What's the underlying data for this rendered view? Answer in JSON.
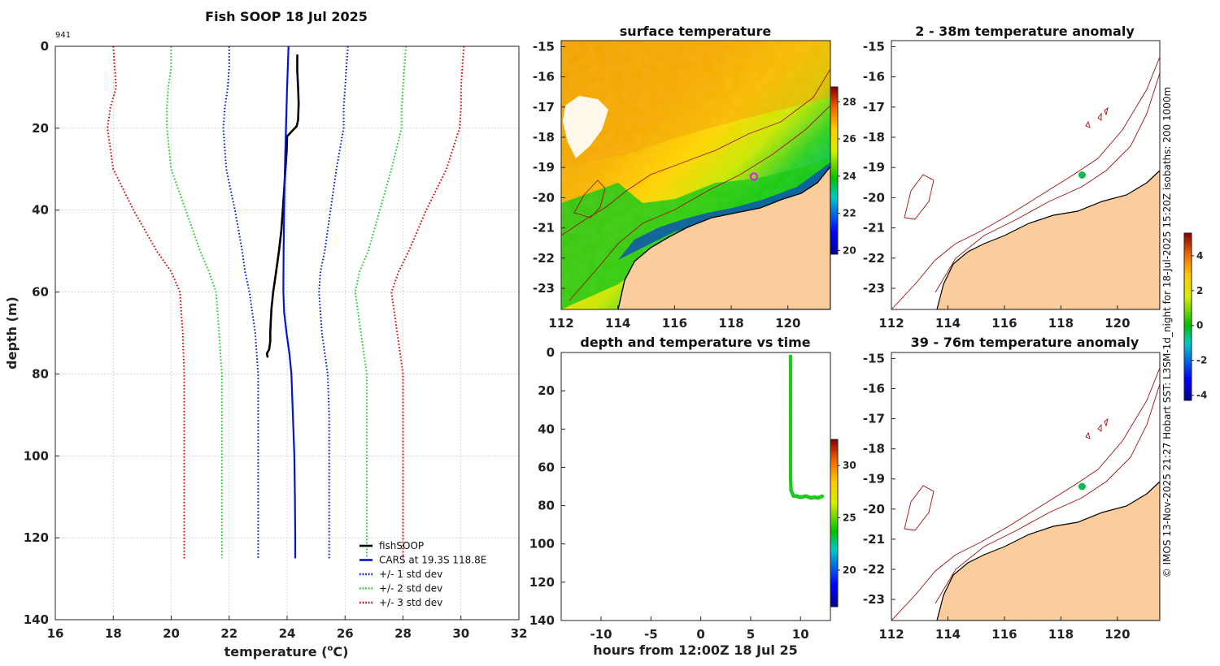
{
  "chart_data": [
    {
      "type": "line",
      "id": "profile",
      "title": "Fish SOOP 18 Jul 2025",
      "corner_label": "941",
      "xlabel": "temperature",
      "xlabel_unit_pre": "(",
      "xlabel_unit_sup": "o",
      "xlabel_unit_post": "C)",
      "ylabel": "depth (m)",
      "xlim": [
        16,
        32
      ],
      "ylim": [
        0,
        140
      ],
      "xticks": [
        "16",
        "18",
        "20",
        "22",
        "24",
        "26",
        "28",
        "30",
        "32"
      ],
      "yticks": [
        "0",
        "20",
        "40",
        "60",
        "80",
        "100",
        "120",
        "140"
      ],
      "series": [
        {
          "name": "fishSOOP",
          "color": "#000000",
          "style": "solid",
          "x": [
            24.35,
            24.35,
            24.38,
            24.4,
            24.38,
            24.33,
            24.0,
            23.98,
            23.94,
            23.9,
            23.85,
            23.8,
            23.72,
            23.62,
            23.52,
            23.46,
            23.43,
            23.42,
            23.42,
            23.38,
            23.3,
            23.33
          ],
          "y": [
            2,
            6,
            10,
            14,
            18,
            19.5,
            22,
            26,
            30,
            35,
            40,
            45,
            50,
            55,
            60,
            64,
            68,
            70,
            72,
            74,
            75,
            76
          ]
        },
        {
          "name": "CARS at 19.3S 118.8E",
          "color": "#0015d6",
          "style": "solid",
          "x": [
            24.05,
            24.0,
            23.96,
            23.92,
            23.9,
            23.88,
            23.87,
            23.9,
            23.98,
            24.08,
            24.15,
            24.2,
            24.25,
            24.27,
            24.28,
            24.28
          ],
          "y": [
            0,
            10,
            20,
            30,
            40,
            50,
            60,
            65,
            70,
            75,
            80,
            90,
            100,
            110,
            120,
            125
          ]
        },
        {
          "name": "+/- 1 std dev (lower)",
          "color": "#0015d6",
          "style": "dotted",
          "x": [
            22.0,
            22.0,
            21.95,
            21.85,
            21.8,
            21.9,
            22.2,
            22.45,
            22.55,
            22.7,
            22.9,
            23.0,
            23.0,
            23.0,
            23.0,
            23.0
          ],
          "y": [
            0,
            5,
            10,
            15,
            20,
            30,
            40,
            50,
            55,
            60,
            70,
            80,
            90,
            100,
            110,
            125
          ]
        },
        {
          "name": "+/- 1 std dev (upper)",
          "color": "#0015d6",
          "style": "dotted",
          "x": [
            26.1,
            26.05,
            26.0,
            25.95,
            25.95,
            25.7,
            25.5,
            25.3,
            25.15,
            25.1,
            25.2,
            25.4,
            25.45,
            25.45,
            25.45
          ],
          "y": [
            0,
            5,
            10,
            15,
            20,
            30,
            40,
            50,
            55,
            60,
            70,
            80,
            90,
            100,
            125
          ]
        },
        {
          "name": "+/- 2 std dev (lower)",
          "color": "#1ccf1c",
          "style": "dotted",
          "x": [
            20.0,
            20.0,
            19.9,
            19.85,
            19.85,
            20.0,
            20.5,
            21.0,
            21.3,
            21.55,
            21.65,
            21.75,
            21.75,
            21.75,
            21.75
          ],
          "y": [
            0,
            5,
            10,
            15,
            20,
            30,
            40,
            50,
            55,
            60,
            70,
            80,
            90,
            100,
            125
          ]
        },
        {
          "name": "+/- 2 std dev (upper)",
          "color": "#1ccf1c",
          "style": "dotted",
          "x": [
            28.1,
            28.05,
            28.0,
            27.95,
            27.95,
            27.6,
            27.2,
            26.8,
            26.5,
            26.35,
            26.55,
            26.75,
            26.75,
            26.75,
            26.75
          ],
          "y": [
            0,
            5,
            10,
            15,
            20,
            30,
            40,
            50,
            55,
            60,
            70,
            80,
            90,
            100,
            125
          ]
        },
        {
          "name": "+/- 3 std dev (lower)",
          "color": "#e00000",
          "style": "dotted",
          "x": [
            18.0,
            18.05,
            18.1,
            17.9,
            17.8,
            18.0,
            18.7,
            19.5,
            20.0,
            20.3,
            20.4,
            20.45,
            20.45,
            20.45,
            20.45
          ],
          "y": [
            0,
            5,
            10,
            15,
            20,
            30,
            40,
            50,
            55,
            60,
            70,
            80,
            90,
            100,
            125
          ]
        },
        {
          "name": "+/- 3 std dev (upper)",
          "color": "#e00000",
          "style": "dotted",
          "x": [
            30.1,
            30.05,
            30.0,
            30.0,
            29.95,
            29.5,
            28.8,
            28.2,
            27.85,
            27.6,
            27.8,
            28.0,
            28.0,
            28.0,
            28.0
          ],
          "y": [
            0,
            5,
            10,
            15,
            20,
            30,
            40,
            50,
            55,
            60,
            70,
            80,
            90,
            100,
            125
          ]
        }
      ],
      "legend": [
        {
          "label": "fishSOOP",
          "color": "#000000",
          "style": "solid"
        },
        {
          "label": "CARS at 19.3S 118.8E",
          "color": "#0015d6",
          "style": "solid"
        },
        {
          "label": "+/- 1 std dev",
          "color": "#0015d6",
          "style": "dotted"
        },
        {
          "label": "+/- 2 std dev",
          "color": "#1ccf1c",
          "style": "dotted"
        },
        {
          "label": "+/- 3 std dev",
          "color": "#e00000",
          "style": "dotted"
        }
      ],
      "legend_position": "bottom-right"
    },
    {
      "type": "heatmap",
      "id": "sst",
      "title": "surface temperature",
      "xlim": [
        112,
        121.5
      ],
      "ylim": [
        -23.7,
        -14.8
      ],
      "xticks": [
        "112",
        "114",
        "116",
        "118",
        "120"
      ],
      "yticks": [
        "-15",
        "-16",
        "-17",
        "-18",
        "-19",
        "-20",
        "-21",
        "-22",
        "-23"
      ],
      "colorbar": {
        "min": 19.8,
        "max": 28.8,
        "ticks": [
          "20",
          "22",
          "24",
          "26",
          "28"
        ]
      },
      "marker": {
        "lon": 118.8,
        "lat": -19.3
      }
    },
    {
      "type": "scatter",
      "id": "depthtime",
      "title": "depth and temperature vs time",
      "xlabel": "hours from 12:00Z 18 Jul 25",
      "xlim": [
        -14,
        13
      ],
      "ylim": [
        0,
        140
      ],
      "xticks": [
        "-10",
        "-5",
        "0",
        "5",
        "10"
      ],
      "yticks": [
        "0",
        "20",
        "40",
        "60",
        "80",
        "100",
        "120",
        "140"
      ],
      "points": {
        "hours": [
          9.0,
          9.0,
          9.0,
          9.0,
          9.0,
          9.0,
          9.0,
          9.0,
          9.0,
          9.05,
          9.3,
          9.6,
          9.9,
          10.2,
          10.5,
          10.8,
          11.1,
          11.4,
          11.7,
          12.0,
          12.2
        ],
        "depth": [
          2,
          8,
          16,
          24,
          32,
          40,
          48,
          56,
          64,
          72,
          75,
          75,
          75.5,
          75.5,
          75,
          75.5,
          76,
          75.5,
          76,
          75.5,
          75
        ]
      },
      "colorbar": {
        "min": 16.5,
        "max": 32.5,
        "ticks": [
          "20",
          "25",
          "30"
        ]
      }
    },
    {
      "type": "heatmap",
      "id": "anomaly-upper",
      "title": "2 - 38m temperature anomaly",
      "xlim": [
        112,
        121.5
      ],
      "ylim": [
        -23.7,
        -14.8
      ],
      "xticks": [
        "112",
        "114",
        "116",
        "118",
        "120"
      ],
      "yticks": [
        "-15",
        "-16",
        "-17",
        "-18",
        "-19",
        "-20",
        "-21",
        "-22",
        "-23"
      ],
      "marker": {
        "lon": 118.75,
        "lat": -19.25,
        "value": 0.4
      }
    },
    {
      "type": "heatmap",
      "id": "anomaly-lower",
      "title": "39 - 76m temperature anomaly",
      "xlim": [
        112,
        121.5
      ],
      "ylim": [
        -23.7,
        -14.8
      ],
      "xticks": [
        "112",
        "114",
        "116",
        "118",
        "120"
      ],
      "yticks": [
        "-15",
        "-16",
        "-17",
        "-18",
        "-19",
        "-20",
        "-21",
        "-22",
        "-23"
      ],
      "marker": {
        "lon": 118.75,
        "lat": -19.25,
        "value": 0.4
      }
    }
  ],
  "anomaly_colorbar": {
    "min": -4.3,
    "max": 5.3,
    "ticks": [
      "-4",
      "-2",
      "0",
      "2",
      "4"
    ]
  },
  "credit": "© IMOS 13-Nov-2025 21:27 Hobart SST: L3SM-1d_night for 18-Jul-2025 15:20Z isobaths: 200  1000m",
  "colors": {
    "land": "#fbcd9c",
    "isobath": "#a01010",
    "marker": "#15b84e",
    "sst_ring": "#e021e0"
  }
}
